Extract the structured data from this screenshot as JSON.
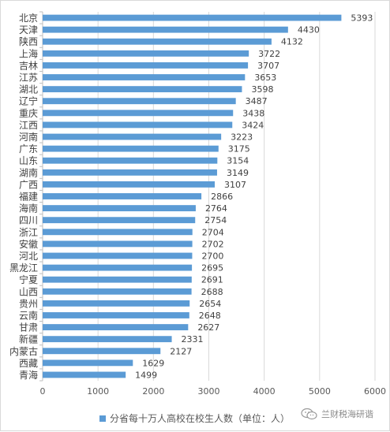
{
  "chart_data": {
    "type": "bar",
    "orientation": "horizontal",
    "categories": [
      "北京",
      "天津",
      "陕西",
      "上海",
      "吉林",
      "江苏",
      "湖北",
      "辽宁",
      "重庆",
      "江西",
      "河南",
      "广东",
      "山东",
      "湖南",
      "广西",
      "福建",
      "海南",
      "四川",
      "浙江",
      "安徽",
      "河北",
      "黑龙江",
      "宁夏",
      "山西",
      "贵州",
      "云南",
      "甘肃",
      "新疆",
      "内蒙古",
      "西藏",
      "青海"
    ],
    "series": [
      {
        "name": "分省每十万人高校在校生人数（单位：人）",
        "values": [
          5393,
          4430,
          4132,
          3722,
          3707,
          3653,
          3598,
          3487,
          3438,
          3424,
          3223,
          3175,
          3154,
          3149,
          3107,
          2866,
          2764,
          2754,
          2704,
          2702,
          2700,
          2695,
          2691,
          2688,
          2654,
          2648,
          2627,
          2331,
          2127,
          1629,
          1499
        ]
      }
    ],
    "xlim": [
      0,
      6000
    ],
    "xticks": [
      "0",
      "1000",
      "2000",
      "3000",
      "4000",
      "5000",
      "6000"
    ],
    "grid": "vertical",
    "legend": "bottom",
    "color": "#5b9bd5"
  },
  "watermark": {
    "text": "兰财税海研谐",
    "icon": "wechat-icon"
  }
}
